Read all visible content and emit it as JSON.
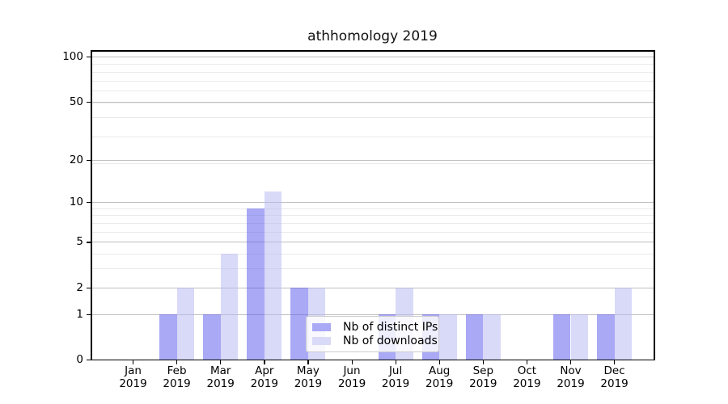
{
  "figure": {
    "title": "athhomology 2019"
  },
  "chart_data": {
    "type": "bar",
    "title": "athhomology 2019",
    "categories": [
      "Jan 2019",
      "Feb 2019",
      "Mar 2019",
      "Apr 2019",
      "May 2019",
      "Jun 2019",
      "Jul 2019",
      "Aug 2019",
      "Sep 2019",
      "Oct 2019",
      "Nov 2019",
      "Dec 2019"
    ],
    "series": [
      {
        "name": "Nb of distinct IPs",
        "color": "#a9a9f6",
        "fill_rgba": "rgba(83,83,237,0.5)",
        "values": [
          0,
          1,
          1,
          9,
          2,
          0,
          1,
          1,
          1,
          0,
          1,
          1
        ]
      },
      {
        "name": "Nb of downloads",
        "color": "#d9d9f8",
        "fill_rgba": "rgba(179,179,241,0.5)",
        "values": [
          0,
          2,
          4,
          12,
          2,
          0,
          2,
          1,
          1,
          0,
          1,
          2
        ]
      }
    ],
    "xlabel": "",
    "ylabel": "",
    "yscale": "log1p",
    "yticks": [
      0,
      1,
      2,
      5,
      10,
      20,
      50,
      100
    ],
    "ytick_labels": [
      "0",
      "1",
      "2",
      "5",
      "10",
      "20",
      "50",
      "100"
    ],
    "ylim": [
      0,
      112
    ],
    "grid": true,
    "legend": {
      "position": "lower center",
      "labels": [
        "Nb of distinct IPs",
        "Nb of downloads"
      ]
    },
    "colors": {
      "background": "#ffffff",
      "axis": "#000000",
      "grid_major": "#c0c0c0",
      "grid_minor": "#eaeaea",
      "text": "#000000"
    }
  }
}
